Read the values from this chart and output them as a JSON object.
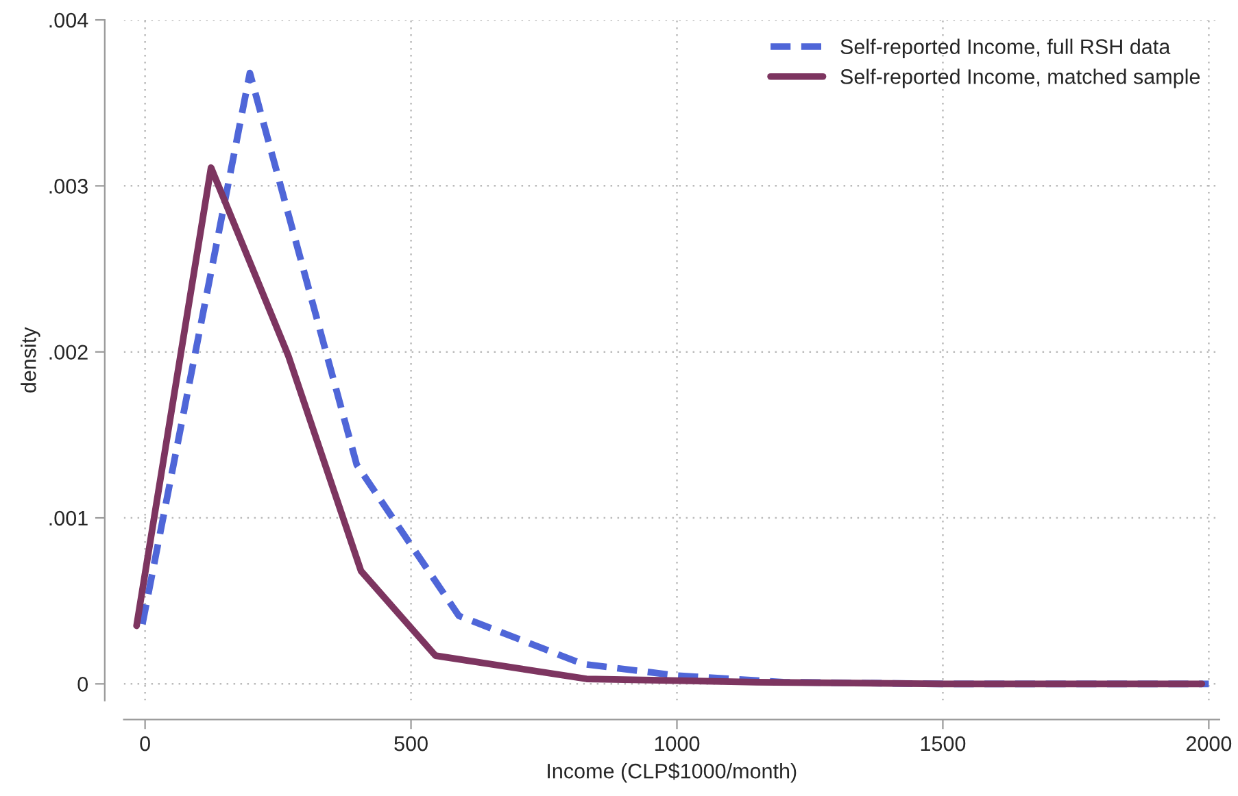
{
  "chart_data": {
    "type": "line",
    "xlabel": "Income (CLP$1000/month)",
    "ylabel": "density",
    "xlim": [
      -40,
      2020
    ],
    "ylim": [
      -0.0001,
      0.004
    ],
    "xticks": [
      0,
      500,
      1000,
      1500,
      2000
    ],
    "yticks": [
      {
        "value": 0,
        "label": "0"
      },
      {
        "value": 0.001,
        "label": ".001"
      },
      {
        "value": 0.002,
        "label": ".002"
      },
      {
        "value": 0.003,
        "label": ".003"
      },
      {
        "value": 0.004,
        "label": ".004"
      }
    ],
    "grid": true,
    "legend": "top right",
    "series": [
      {
        "name": "Self-reported Income, full RSH data",
        "color": "#4f66d8",
        "line_style": "dashed",
        "x": [
          -5,
          197,
          398,
          590,
          823,
          1000,
          1200,
          1500,
          2000
        ],
        "values": [
          0.00036,
          0.00368,
          0.00132,
          0.00041,
          0.00012,
          5e-05,
          1e-05,
          0.0,
          0.0
        ]
      },
      {
        "name": "Self-reported Income, matched sample",
        "color": "#7d3560",
        "line_style": "solid",
        "x": [
          -16,
          124,
          269,
          406,
          546,
          830,
          1150,
          1500,
          1987
        ],
        "values": [
          0.00035,
          0.00311,
          0.00198,
          0.00068,
          0.00017,
          3e-05,
          1e-05,
          0.0,
          0.0
        ]
      }
    ]
  }
}
